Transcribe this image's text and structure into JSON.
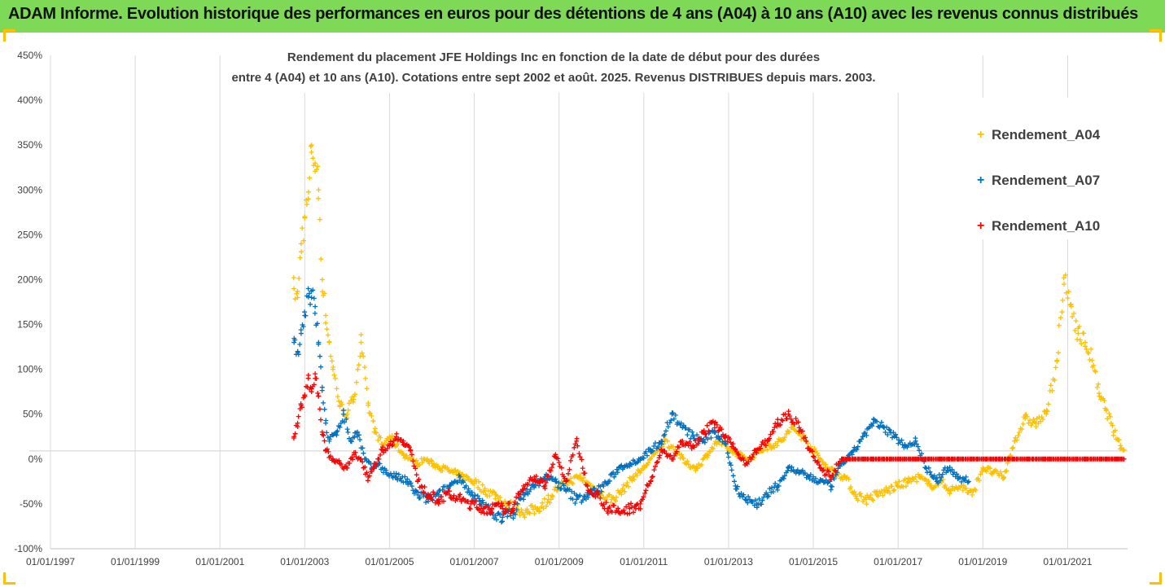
{
  "banner": {
    "text": "ADAM Informe. Evolution historique des performances en euros pour des détentions de 4 ans (A04) à 10 ans (A10) avec les revenus connus distribués"
  },
  "colors": {
    "banner_bg": "#7ed957",
    "A04": "#ffc000",
    "A07": "#0070c0",
    "A10": "#ff0000"
  },
  "chart_data": {
    "type": "scatter",
    "title_lines": [
      "Rendement du placement JFE Holdings Inc en fonction de la date de début pour des durées",
      "entre 4 (A04) et 10 ans (A10). Cotations entre sept 2002 et août. 2025. Revenus DISTRIBUES depuis mars. 2003."
    ],
    "xlim": [
      "1997-01-01",
      "2022-06-01"
    ],
    "x_ticks": [
      "01/01/1997",
      "01/01/1999",
      "01/01/2001",
      "01/01/2003",
      "01/01/2005",
      "01/01/2007",
      "01/01/2009",
      "01/01/2011",
      "01/01/2013",
      "01/01/2015",
      "01/01/2017",
      "01/01/2019",
      "01/01/2021"
    ],
    "ylim": [
      -100,
      450
    ],
    "y_ticks": [
      "450%",
      "400%",
      "350%",
      "300%",
      "250%",
      "200%",
      "150%",
      "100%",
      "50%",
      "0%",
      "-50%",
      "-100%"
    ],
    "y_tick_values": [
      450,
      400,
      350,
      300,
      250,
      200,
      150,
      100,
      50,
      0,
      -50,
      -100
    ],
    "grid": "vertical",
    "legend_position": "right",
    "series": [
      {
        "name": "Rendement_A04",
        "color": "#ffc000",
        "points": [
          [
            "2002-10-01",
            190
          ],
          [
            "2002-11-01",
            180
          ],
          [
            "2002-12-01",
            240
          ],
          [
            "2003-01-01",
            270
          ],
          [
            "2003-02-01",
            290
          ],
          [
            "2003-03-01",
            350
          ],
          [
            "2003-04-01",
            330
          ],
          [
            "2003-05-01",
            300
          ],
          [
            "2003-06-01",
            200
          ],
          [
            "2003-07-01",
            160
          ],
          [
            "2003-08-01",
            130
          ],
          [
            "2003-09-01",
            100
          ],
          [
            "2003-11-01",
            60
          ],
          [
            "2004-01-01",
            50
          ],
          [
            "2004-03-01",
            70
          ],
          [
            "2004-05-01",
            130
          ],
          [
            "2004-07-01",
            60
          ],
          [
            "2004-09-01",
            30
          ],
          [
            "2004-11-01",
            15
          ],
          [
            "2005-01-01",
            25
          ],
          [
            "2005-03-01",
            15
          ],
          [
            "2005-05-01",
            5
          ],
          [
            "2005-07-01",
            0
          ],
          [
            "2005-09-01",
            -5
          ],
          [
            "2005-11-01",
            0
          ],
          [
            "2006-01-01",
            -5
          ],
          [
            "2006-04-01",
            -10
          ],
          [
            "2006-07-01",
            -15
          ],
          [
            "2006-10-01",
            -20
          ],
          [
            "2007-01-01",
            -25
          ],
          [
            "2007-04-01",
            -35
          ],
          [
            "2007-07-01",
            -40
          ],
          [
            "2007-10-01",
            -50
          ],
          [
            "2008-01-01",
            -55
          ],
          [
            "2008-04-01",
            -60
          ],
          [
            "2008-07-01",
            -55
          ],
          [
            "2008-10-01",
            -45
          ],
          [
            "2009-01-01",
            -30
          ],
          [
            "2009-04-01",
            -25
          ],
          [
            "2009-07-01",
            -20
          ],
          [
            "2009-10-01",
            -30
          ],
          [
            "2010-01-01",
            -40
          ],
          [
            "2010-04-01",
            -45
          ],
          [
            "2010-07-01",
            -35
          ],
          [
            "2010-10-01",
            -20
          ],
          [
            "2011-01-01",
            -10
          ],
          [
            "2011-04-01",
            5
          ],
          [
            "2011-07-01",
            20
          ],
          [
            "2011-10-01",
            10
          ],
          [
            "2012-01-01",
            -5
          ],
          [
            "2012-04-01",
            -10
          ],
          [
            "2012-07-01",
            5
          ],
          [
            "2012-10-01",
            20
          ],
          [
            "2013-01-01",
            10
          ],
          [
            "2013-04-01",
            5
          ],
          [
            "2013-07-01",
            0
          ],
          [
            "2013-10-01",
            10
          ],
          [
            "2014-01-01",
            15
          ],
          [
            "2014-04-01",
            20
          ],
          [
            "2014-07-01",
            35
          ],
          [
            "2014-10-01",
            25
          ],
          [
            "2015-01-01",
            10
          ],
          [
            "2015-04-01",
            -5
          ],
          [
            "2015-07-01",
            -15
          ],
          [
            "2015-10-01",
            -20
          ],
          [
            "2016-01-01",
            -40
          ],
          [
            "2016-04-01",
            -45
          ],
          [
            "2016-07-01",
            -40
          ],
          [
            "2016-10-01",
            -35
          ],
          [
            "2017-01-01",
            -30
          ],
          [
            "2017-04-01",
            -25
          ],
          [
            "2017-07-01",
            -20
          ],
          [
            "2017-10-01",
            -30
          ],
          [
            "2018-01-01",
            -25
          ],
          [
            "2018-04-01",
            -35
          ],
          [
            "2018-07-01",
            -30
          ],
          [
            "2018-10-01",
            -40
          ],
          [
            "2019-01-01",
            -10
          ],
          [
            "2019-04-01",
            -15
          ],
          [
            "2019-07-01",
            -20
          ],
          [
            "2019-10-01",
            20
          ],
          [
            "2020-01-01",
            45
          ],
          [
            "2020-04-01",
            40
          ],
          [
            "2020-07-01",
            50
          ],
          [
            "2020-10-01",
            110
          ],
          [
            "2020-12-01",
            195
          ],
          [
            "2021-02-01",
            170
          ],
          [
            "2021-04-01",
            140
          ],
          [
            "2021-06-01",
            130
          ],
          [
            "2021-08-01",
            110
          ],
          [
            "2021-10-01",
            70
          ],
          [
            "2021-12-01",
            55
          ],
          [
            "2022-02-01",
            30
          ],
          [
            "2022-04-01",
            15
          ],
          [
            "2022-05-01",
            10
          ]
        ]
      },
      {
        "name": "Rendement_A07",
        "color": "#0070c0",
        "points": [
          [
            "2002-10-01",
            130
          ],
          [
            "2002-11-01",
            120
          ],
          [
            "2002-12-01",
            140
          ],
          [
            "2003-01-01",
            160
          ],
          [
            "2003-02-01",
            190
          ],
          [
            "2003-03-01",
            180
          ],
          [
            "2003-04-01",
            170
          ],
          [
            "2003-05-01",
            130
          ],
          [
            "2003-06-01",
            80
          ],
          [
            "2003-07-01",
            40
          ],
          [
            "2003-08-01",
            20
          ],
          [
            "2003-10-01",
            30
          ],
          [
            "2003-12-01",
            50
          ],
          [
            "2004-02-01",
            20
          ],
          [
            "2004-04-01",
            30
          ],
          [
            "2004-06-01",
            0
          ],
          [
            "2004-08-01",
            -10
          ],
          [
            "2004-10-01",
            -5
          ],
          [
            "2004-12-01",
            -15
          ],
          [
            "2005-03-01",
            -20
          ],
          [
            "2005-06-01",
            -25
          ],
          [
            "2005-09-01",
            -40
          ],
          [
            "2005-12-01",
            -45
          ],
          [
            "2006-03-01",
            -40
          ],
          [
            "2006-06-01",
            -30
          ],
          [
            "2006-09-01",
            -20
          ],
          [
            "2006-12-01",
            -40
          ],
          [
            "2007-03-01",
            -50
          ],
          [
            "2007-06-01",
            -60
          ],
          [
            "2007-09-01",
            -65
          ],
          [
            "2007-12-01",
            -60
          ],
          [
            "2008-03-01",
            -40
          ],
          [
            "2008-06-01",
            -30
          ],
          [
            "2008-09-01",
            -20
          ],
          [
            "2008-12-01",
            -25
          ],
          [
            "2009-03-01",
            -35
          ],
          [
            "2009-06-01",
            -45
          ],
          [
            "2009-09-01",
            -40
          ],
          [
            "2009-12-01",
            -35
          ],
          [
            "2010-03-01",
            -25
          ],
          [
            "2010-06-01",
            -10
          ],
          [
            "2010-09-01",
            -5
          ],
          [
            "2010-12-01",
            0
          ],
          [
            "2011-03-01",
            10
          ],
          [
            "2011-06-01",
            20
          ],
          [
            "2011-09-01",
            50
          ],
          [
            "2011-12-01",
            35
          ],
          [
            "2012-03-01",
            25
          ],
          [
            "2012-06-01",
            20
          ],
          [
            "2012-09-01",
            30
          ],
          [
            "2012-12-01",
            20
          ],
          [
            "2013-03-01",
            -30
          ],
          [
            "2013-06-01",
            -45
          ],
          [
            "2013-09-01",
            -50
          ],
          [
            "2013-12-01",
            -40
          ],
          [
            "2014-03-01",
            -30
          ],
          [
            "2014-06-01",
            -10
          ],
          [
            "2014-09-01",
            -15
          ],
          [
            "2014-12-01",
            -20
          ],
          [
            "2015-03-01",
            -25
          ],
          [
            "2015-06-01",
            -30
          ],
          [
            "2015-09-01",
            -5
          ],
          [
            "2015-12-01",
            5
          ],
          [
            "2016-03-01",
            25
          ],
          [
            "2016-06-01",
            40
          ],
          [
            "2016-09-01",
            35
          ],
          [
            "2016-12-01",
            25
          ],
          [
            "2017-03-01",
            15
          ],
          [
            "2017-06-01",
            20
          ],
          [
            "2017-09-01",
            -10
          ],
          [
            "2017-12-01",
            -25
          ],
          [
            "2018-03-01",
            -10
          ],
          [
            "2018-06-01",
            -20
          ],
          [
            "2018-09-01",
            -25
          ]
        ]
      },
      {
        "name": "Rendement_A10",
        "color": "#ff0000",
        "points": [
          [
            "2002-10-01",
            25
          ],
          [
            "2002-11-01",
            40
          ],
          [
            "2002-12-01",
            60
          ],
          [
            "2003-01-01",
            70
          ],
          [
            "2003-02-01",
            90
          ],
          [
            "2003-03-01",
            75
          ],
          [
            "2003-04-01",
            95
          ],
          [
            "2003-05-01",
            70
          ],
          [
            "2003-06-01",
            30
          ],
          [
            "2003-07-01",
            10
          ],
          [
            "2003-09-01",
            0
          ],
          [
            "2003-11-01",
            -5
          ],
          [
            "2004-01-01",
            -10
          ],
          [
            "2004-03-01",
            5
          ],
          [
            "2004-05-01",
            0
          ],
          [
            "2004-07-01",
            -20
          ],
          [
            "2004-09-01",
            -5
          ],
          [
            "2004-11-01",
            10
          ],
          [
            "2005-01-01",
            15
          ],
          [
            "2005-03-01",
            25
          ],
          [
            "2005-05-01",
            20
          ],
          [
            "2005-07-01",
            10
          ],
          [
            "2005-09-01",
            -25
          ],
          [
            "2005-12-01",
            -40
          ],
          [
            "2006-03-01",
            -45
          ],
          [
            "2006-06-01",
            -40
          ],
          [
            "2006-09-01",
            -45
          ],
          [
            "2006-12-01",
            -50
          ],
          [
            "2007-03-01",
            -55
          ],
          [
            "2007-06-01",
            -55
          ],
          [
            "2007-09-01",
            -55
          ],
          [
            "2007-12-01",
            -55
          ],
          [
            "2008-03-01",
            -30
          ],
          [
            "2008-06-01",
            -20
          ],
          [
            "2008-09-01",
            -30
          ],
          [
            "2008-12-01",
            5
          ],
          [
            "2009-03-01",
            -25
          ],
          [
            "2009-06-01",
            20
          ],
          [
            "2009-09-01",
            -30
          ],
          [
            "2009-12-01",
            -40
          ],
          [
            "2010-03-01",
            -55
          ],
          [
            "2010-06-01",
            -60
          ],
          [
            "2010-09-01",
            -55
          ],
          [
            "2010-12-01",
            -50
          ],
          [
            "2011-03-01",
            -25
          ],
          [
            "2011-06-01",
            10
          ],
          [
            "2011-09-01",
            0
          ],
          [
            "2011-12-01",
            20
          ],
          [
            "2012-03-01",
            15
          ],
          [
            "2012-06-01",
            30
          ],
          [
            "2012-09-01",
            40
          ],
          [
            "2012-12-01",
            25
          ],
          [
            "2013-03-01",
            10
          ],
          [
            "2013-06-01",
            -5
          ],
          [
            "2013-09-01",
            10
          ],
          [
            "2013-12-01",
            20
          ],
          [
            "2014-03-01",
            40
          ],
          [
            "2014-06-01",
            50
          ],
          [
            "2014-09-01",
            35
          ],
          [
            "2014-12-01",
            10
          ],
          [
            "2015-03-01",
            -10
          ],
          [
            "2015-06-01",
            -20
          ],
          [
            "2015-09-01",
            0
          ],
          [
            "2016-06-01",
            0
          ],
          [
            "2017-06-01",
            0
          ],
          [
            "2018-06-01",
            0
          ],
          [
            "2019-06-01",
            0
          ],
          [
            "2020-06-01",
            0
          ],
          [
            "2021-06-01",
            0
          ],
          [
            "2022-05-01",
            0
          ]
        ]
      }
    ]
  }
}
